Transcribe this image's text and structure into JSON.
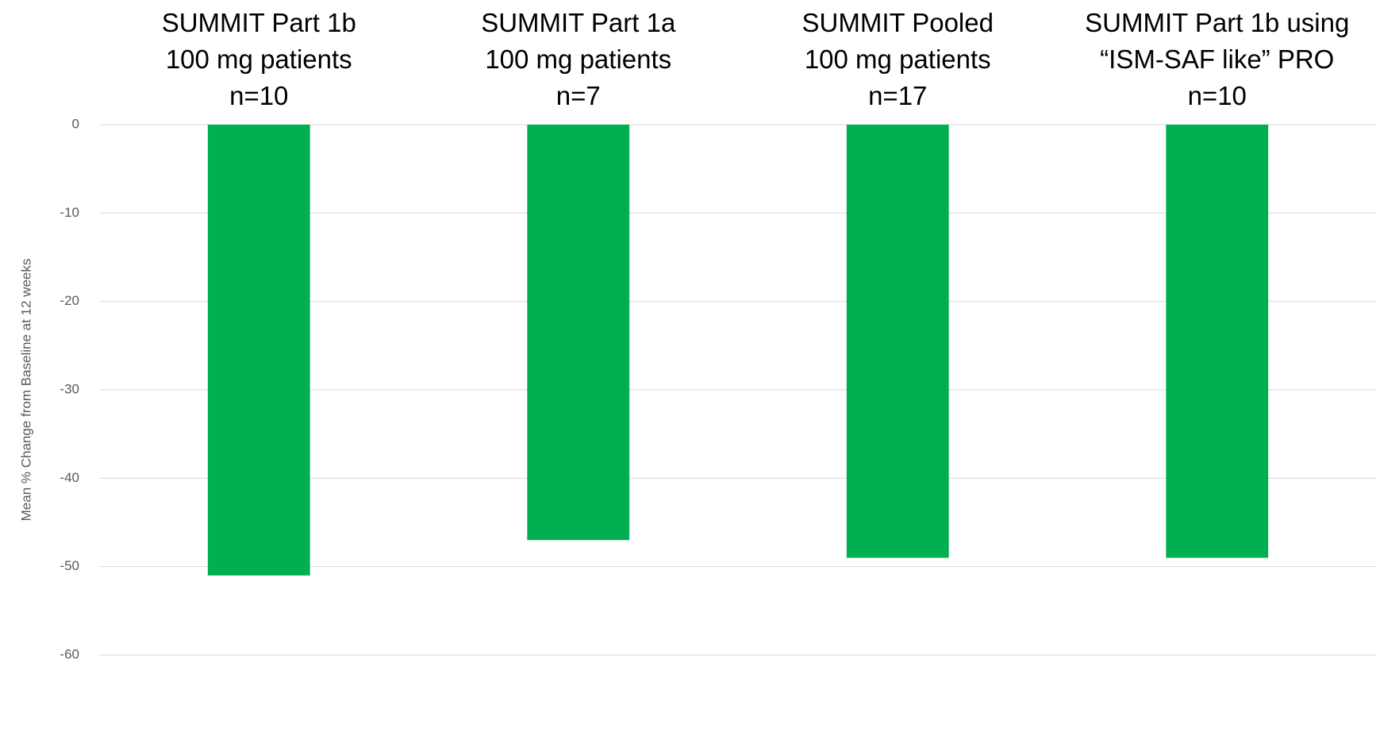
{
  "chart_data": {
    "type": "bar",
    "categories": [
      "SUMMIT Part 1b\n100 mg patients\nn=10",
      "SUMMIT Part 1a\n100 mg patients\nn=7",
      "SUMMIT Pooled\n100 mg patients\nn=17",
      "SUMMIT Part 1b using\n“ISM-SAF like” PRO\nn=10"
    ],
    "values": [
      -51,
      -47,
      -49,
      -49
    ],
    "color": "#00b050",
    "y_label": "Mean % Change from Baseline at 12 weeks",
    "ylim": [
      -60,
      0
    ],
    "yticks": [
      0,
      -10,
      -20,
      -30,
      -40,
      -50,
      -60
    ],
    "grid": true
  }
}
